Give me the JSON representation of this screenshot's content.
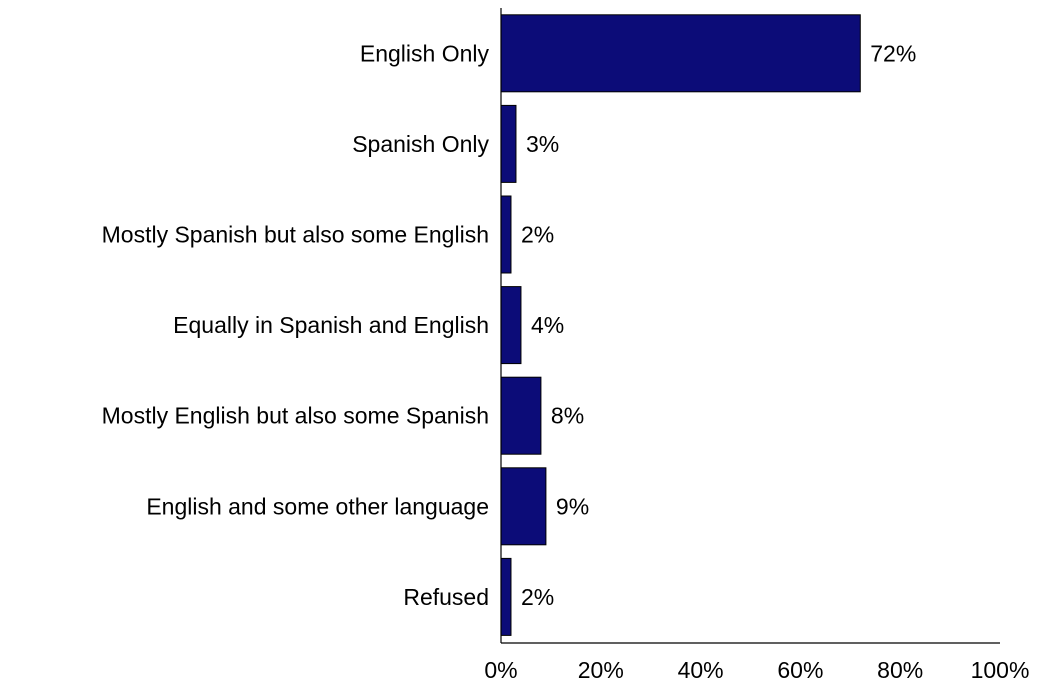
{
  "chart_data": {
    "type": "bar",
    "orientation": "horizontal",
    "title": "",
    "xlabel": "",
    "ylabel": "",
    "categories": [
      "English Only",
      "Spanish Only",
      "Mostly Spanish but also some English",
      "Equally in Spanish and English",
      "Mostly English but also some Spanish",
      "English and some other language",
      "Refused"
    ],
    "values": [
      72,
      3,
      2,
      4,
      8,
      9,
      2
    ],
    "value_labels": [
      "72%",
      "3%",
      "2%",
      "4%",
      "8%",
      "9%",
      "2%"
    ],
    "xlim": [
      0,
      100
    ],
    "x_ticks": [
      0,
      20,
      40,
      60,
      80,
      100
    ],
    "x_tick_labels": [
      "0%",
      "20%",
      "40%",
      "60%",
      "80%",
      "100%"
    ],
    "grid": false,
    "legend": "none",
    "bar_color": "#0c0c78",
    "bar_edge_color": "#000000"
  }
}
